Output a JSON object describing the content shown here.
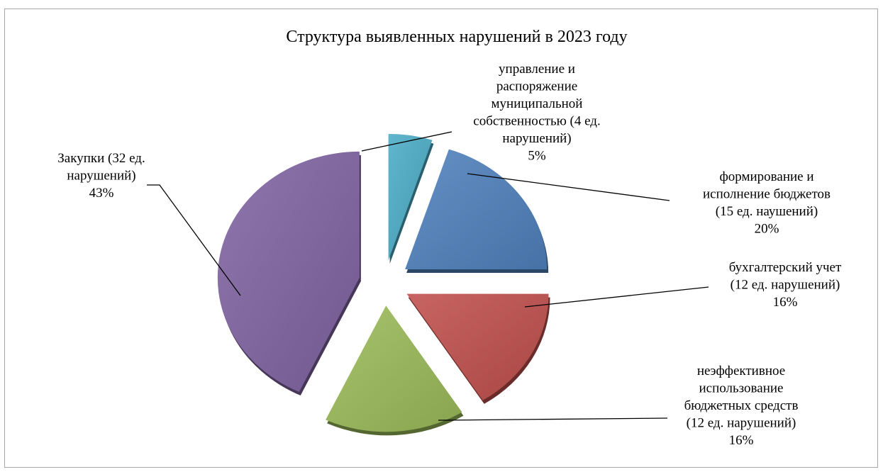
{
  "chart_data": {
    "type": "pie",
    "title": "Структура выявленных нарушений  в 2023 году",
    "slices": [
      {
        "id": "mgmt",
        "value": 5,
        "color": "#4bacc6",
        "label_lines": [
          "управление и",
          "распоряжение",
          "муниципальной",
          "собственностью (4 ед.",
          "нарушений)",
          "5%"
        ]
      },
      {
        "id": "budget",
        "value": 20,
        "color": "#4f81bd",
        "label_lines": [
          "формирование и",
          "исполнение бюджетов",
          "(15 ед. наушений)",
          "20%"
        ]
      },
      {
        "id": "accounting",
        "value": 16,
        "color": "#c0504d",
        "label_lines": [
          "бухгалтерский учет",
          "(12 ед. нарушений)",
          "16%"
        ]
      },
      {
        "id": "inefficient",
        "value": 16,
        "color": "#9bbb59",
        "label_lines": [
          "неэффективное",
          "использование",
          "бюджетных средств",
          "(12 ед. нарушений)",
          "16%"
        ]
      },
      {
        "id": "purchases",
        "value": 43,
        "color": "#8064a2",
        "label_lines": [
          "Закупки (32 ед.",
          "нарушений)",
          "43%"
        ]
      }
    ]
  }
}
